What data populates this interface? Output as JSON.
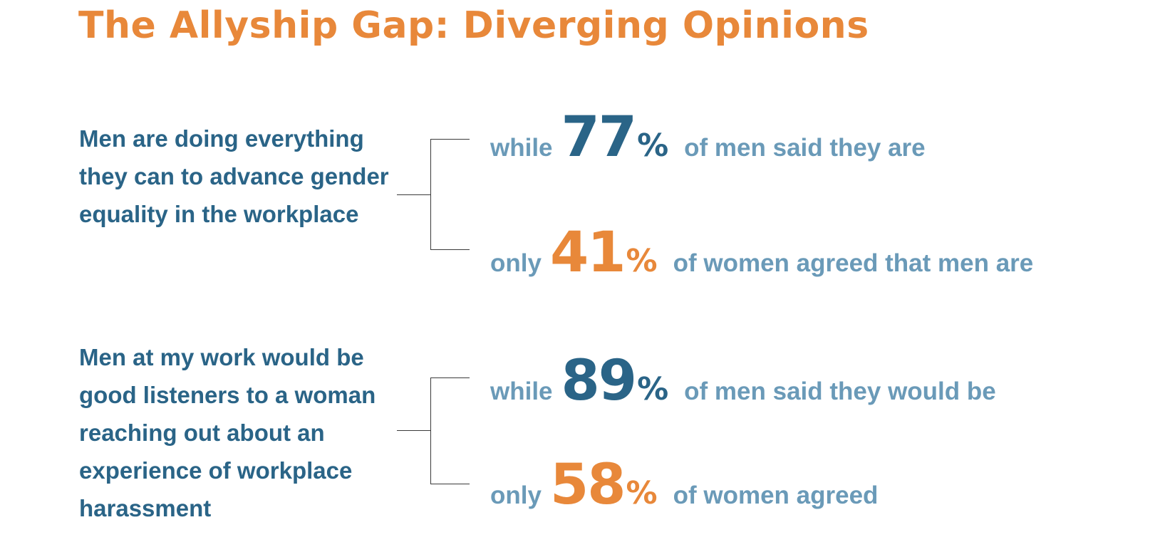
{
  "title": "The Allyship Gap: Diverging Opinions",
  "colors": {
    "title": "#e8883a",
    "men": "#2a6487",
    "women": "#e8883a",
    "text": "#6a9ab8"
  },
  "items": [
    {
      "statement": "Men are doing everything they can to advance gender equality in the workplace",
      "men": {
        "lead": "while",
        "value": "77",
        "unit": "%",
        "text": "of men said they are"
      },
      "women": {
        "lead": "only",
        "value": "41",
        "unit": "%",
        "text": "of women agreed that men are"
      }
    },
    {
      "statement": "Men at my work would be good listeners to a woman reaching out about an experience of workplace harassment",
      "men": {
        "lead": "while",
        "value": "89",
        "unit": "%",
        "text": "of men said they would be"
      },
      "women": {
        "lead": "only",
        "value": "58",
        "unit": "%",
        "text": "of women agreed"
      }
    }
  ]
}
